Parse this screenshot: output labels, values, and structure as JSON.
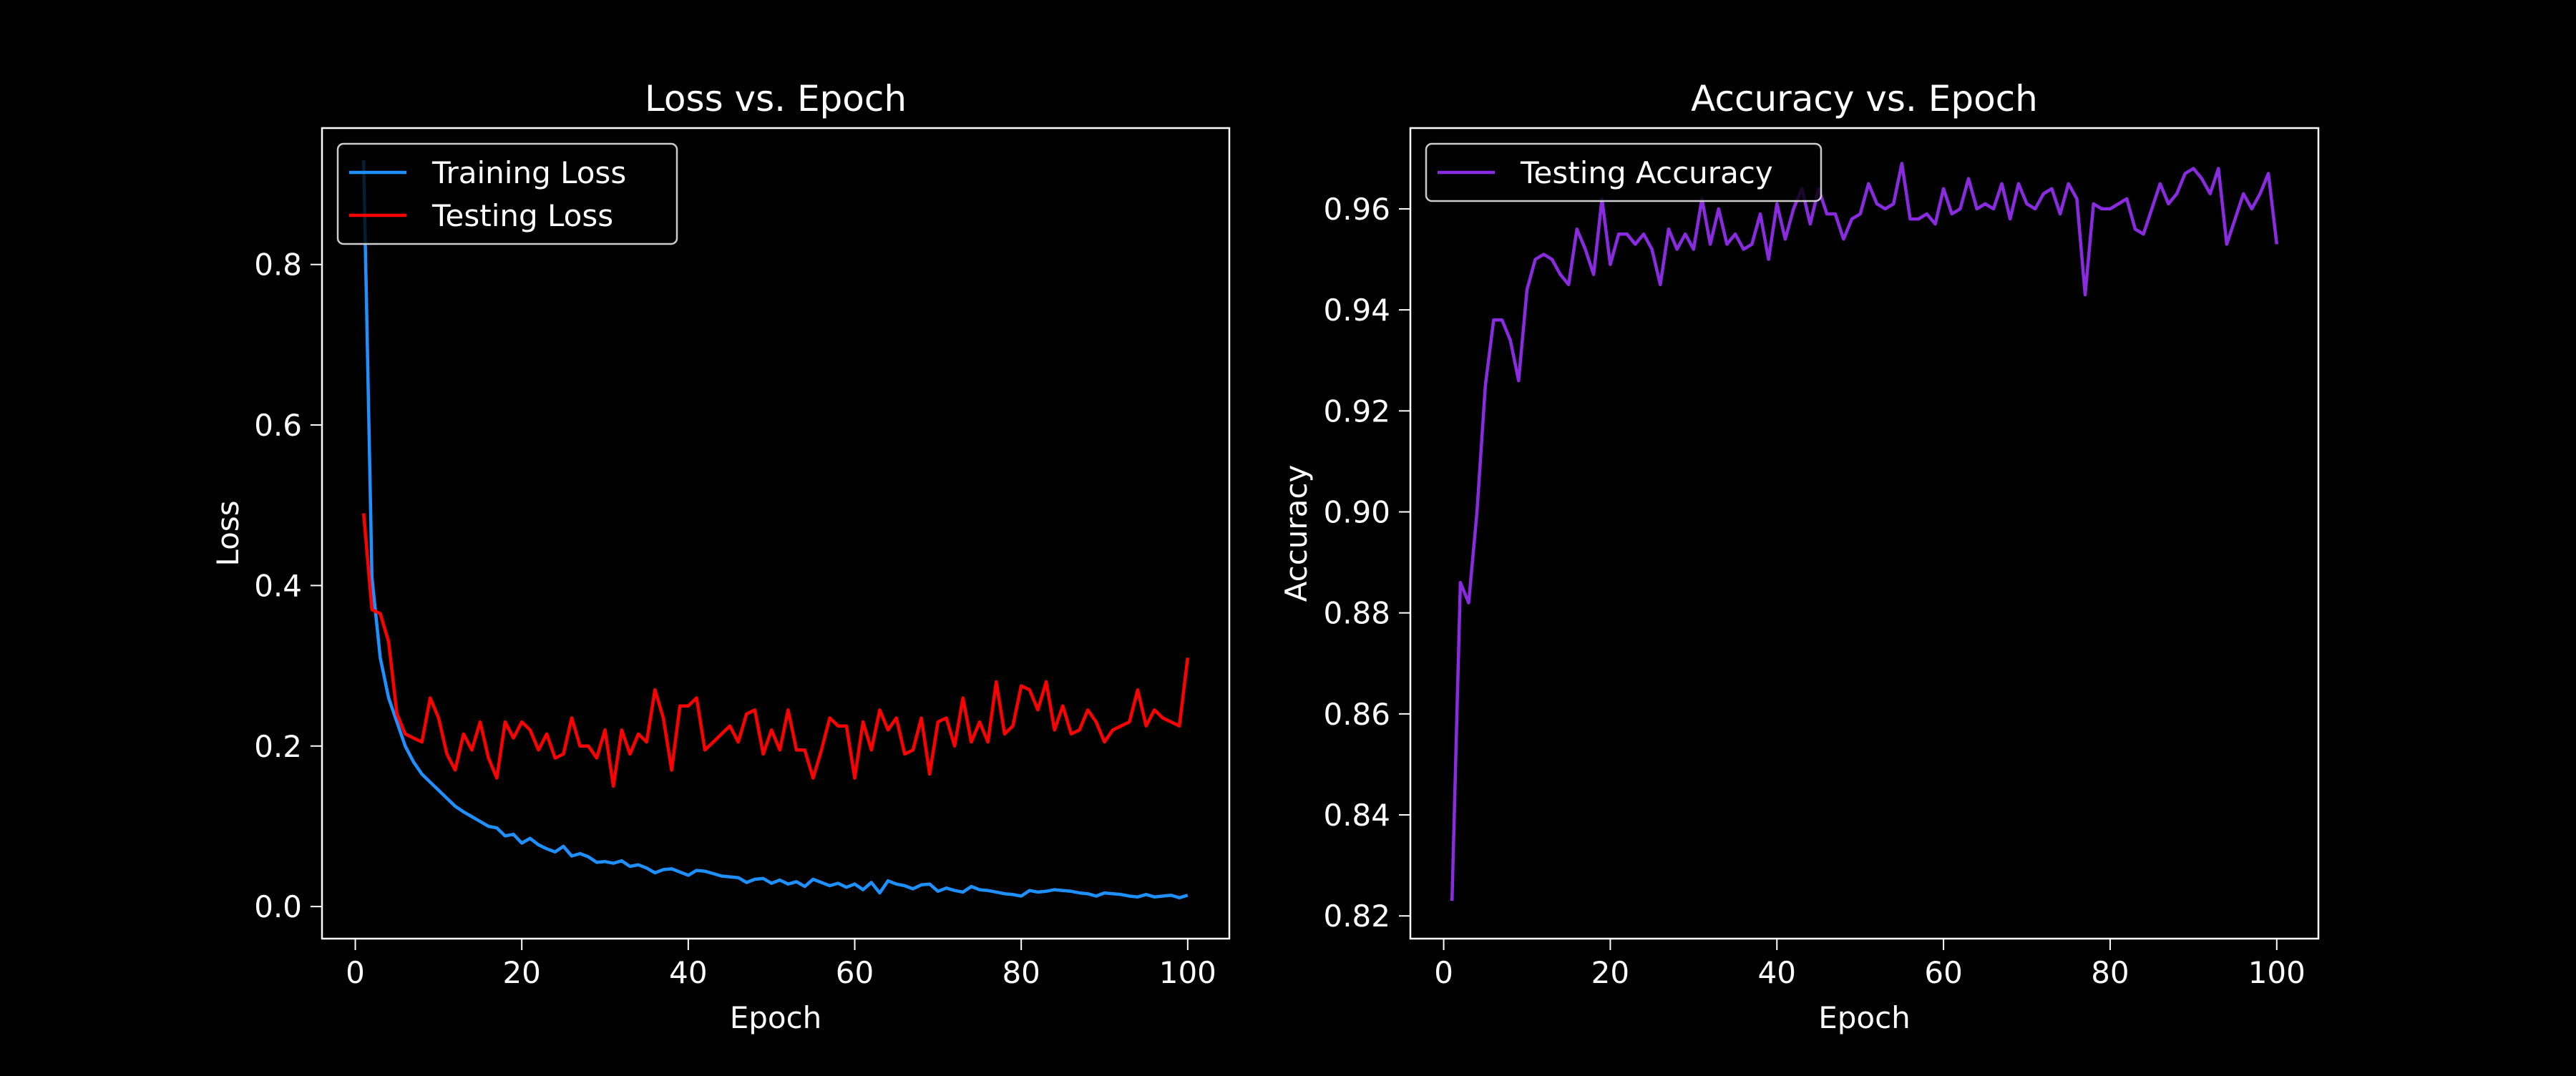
{
  "colors": {
    "background": "#000000",
    "foreground": "#ffffff",
    "training_loss": "#1e90ff",
    "testing_loss": "#ff0000",
    "testing_accuracy": "#8a2be2"
  },
  "chart_data": [
    {
      "type": "line",
      "title": "Loss vs. Epoch",
      "xlabel": "Epoch",
      "ylabel": "Loss",
      "xlim": [
        -4,
        105
      ],
      "ylim": [
        -0.04,
        0.97
      ],
      "xticks": [
        0,
        20,
        40,
        60,
        80,
        100
      ],
      "xtick_labels": [
        "0",
        "20",
        "40",
        "60",
        "80",
        "100"
      ],
      "yticks": [
        0.0,
        0.2,
        0.4,
        0.6,
        0.8
      ],
      "ytick_labels": [
        "0.0",
        "0.2",
        "0.4",
        "0.6",
        "0.8"
      ],
      "grid": false,
      "legend": "upper-left",
      "x": [
        1,
        2,
        3,
        4,
        5,
        6,
        7,
        8,
        9,
        10,
        11,
        12,
        13,
        14,
        15,
        16,
        17,
        18,
        19,
        20,
        21,
        22,
        23,
        24,
        25,
        26,
        27,
        28,
        29,
        30,
        31,
        32,
        33,
        34,
        35,
        36,
        37,
        38,
        39,
        40,
        41,
        42,
        43,
        44,
        45,
        46,
        47,
        48,
        49,
        50,
        51,
        52,
        53,
        54,
        55,
        56,
        57,
        58,
        59,
        60,
        61,
        62,
        63,
        64,
        65,
        66,
        67,
        68,
        69,
        70,
        71,
        72,
        73,
        74,
        75,
        76,
        77,
        78,
        79,
        80,
        81,
        82,
        83,
        84,
        85,
        86,
        87,
        88,
        89,
        90,
        91,
        92,
        93,
        94,
        95,
        96,
        97,
        98,
        99,
        100
      ],
      "series": [
        {
          "name": "Training Loss",
          "color": "#1e90ff",
          "values": [
            0.93,
            0.41,
            0.31,
            0.26,
            0.23,
            0.2,
            0.18,
            0.165,
            0.155,
            0.145,
            0.135,
            0.125,
            0.118,
            0.112,
            0.106,
            0.1,
            0.098,
            0.088,
            0.09,
            0.079,
            0.085,
            0.077,
            0.072,
            0.068,
            0.075,
            0.063,
            0.066,
            0.062,
            0.055,
            0.056,
            0.054,
            0.057,
            0.05,
            0.052,
            0.048,
            0.042,
            0.046,
            0.047,
            0.043,
            0.039,
            0.045,
            0.044,
            0.041,
            0.038,
            0.037,
            0.036,
            0.03,
            0.034,
            0.035,
            0.029,
            0.033,
            0.028,
            0.031,
            0.025,
            0.034,
            0.03,
            0.026,
            0.029,
            0.024,
            0.028,
            0.021,
            0.03,
            0.017,
            0.032,
            0.028,
            0.026,
            0.022,
            0.027,
            0.028,
            0.019,
            0.023,
            0.02,
            0.018,
            0.025,
            0.021,
            0.02,
            0.018,
            0.016,
            0.015,
            0.013,
            0.02,
            0.018,
            0.019,
            0.021,
            0.02,
            0.019,
            0.017,
            0.016,
            0.013,
            0.017,
            0.016,
            0.015,
            0.013,
            0.012,
            0.015,
            0.012,
            0.013,
            0.014,
            0.011,
            0.014
          ]
        },
        {
          "name": "Testing Loss",
          "color": "#ff0000",
          "values": [
            0.49,
            0.37,
            0.365,
            0.33,
            0.24,
            0.215,
            0.21,
            0.205,
            0.26,
            0.235,
            0.19,
            0.17,
            0.215,
            0.195,
            0.23,
            0.185,
            0.16,
            0.23,
            0.21,
            0.23,
            0.22,
            0.195,
            0.215,
            0.185,
            0.19,
            0.235,
            0.2,
            0.2,
            0.185,
            0.22,
            0.15,
            0.22,
            0.19,
            0.215,
            0.205,
            0.27,
            0.235,
            0.17,
            0.25,
            0.25,
            0.26,
            0.195,
            0.205,
            0.215,
            0.225,
            0.205,
            0.24,
            0.245,
            0.19,
            0.22,
            0.195,
            0.245,
            0.195,
            0.195,
            0.16,
            0.195,
            0.235,
            0.225,
            0.225,
            0.16,
            0.23,
            0.195,
            0.245,
            0.22,
            0.235,
            0.19,
            0.195,
            0.235,
            0.165,
            0.23,
            0.235,
            0.2,
            0.26,
            0.205,
            0.23,
            0.205,
            0.28,
            0.215,
            0.225,
            0.275,
            0.27,
            0.245,
            0.28,
            0.22,
            0.25,
            0.215,
            0.22,
            0.245,
            0.23,
            0.205,
            0.22,
            0.225,
            0.23,
            0.27,
            0.225,
            0.245,
            0.235,
            0.23,
            0.225,
            0.31
          ]
        }
      ]
    },
    {
      "type": "line",
      "title": "Accuracy vs. Epoch",
      "xlabel": "Epoch",
      "ylabel": "Accuracy",
      "xlim": [
        -4,
        105
      ],
      "ylim": [
        0.8155,
        0.976
      ],
      "xticks": [
        0,
        20,
        40,
        60,
        80,
        100
      ],
      "xtick_labels": [
        "0",
        "20",
        "40",
        "60",
        "80",
        "100"
      ],
      "yticks": [
        0.82,
        0.84,
        0.86,
        0.88,
        0.9,
        0.92,
        0.94,
        0.96
      ],
      "ytick_labels": [
        "0.82",
        "0.84",
        "0.86",
        "0.88",
        "0.90",
        "0.92",
        "0.94",
        "0.96"
      ],
      "grid": false,
      "legend": "upper-left",
      "x": [
        1,
        2,
        3,
        4,
        5,
        6,
        7,
        8,
        9,
        10,
        11,
        12,
        13,
        14,
        15,
        16,
        17,
        18,
        19,
        20,
        21,
        22,
        23,
        24,
        25,
        26,
        27,
        28,
        29,
        30,
        31,
        32,
        33,
        34,
        35,
        36,
        37,
        38,
        39,
        40,
        41,
        42,
        43,
        44,
        45,
        46,
        47,
        48,
        49,
        50,
        51,
        52,
        53,
        54,
        55,
        56,
        57,
        58,
        59,
        60,
        61,
        62,
        63,
        64,
        65,
        66,
        67,
        68,
        69,
        70,
        71,
        72,
        73,
        74,
        75,
        76,
        77,
        78,
        79,
        80,
        81,
        82,
        83,
        84,
        85,
        86,
        87,
        88,
        89,
        90,
        91,
        92,
        93,
        94,
        95,
        96,
        97,
        98,
        99,
        100
      ],
      "series": [
        {
          "name": "Testing Accuracy",
          "color": "#8a2be2",
          "values": [
            0.823,
            0.886,
            0.882,
            0.9,
            0.925,
            0.938,
            0.938,
            0.934,
            0.926,
            0.944,
            0.95,
            0.951,
            0.95,
            0.947,
            0.945,
            0.956,
            0.952,
            0.947,
            0.962,
            0.949,
            0.955,
            0.955,
            0.953,
            0.955,
            0.952,
            0.945,
            0.956,
            0.952,
            0.955,
            0.952,
            0.962,
            0.953,
            0.96,
            0.953,
            0.955,
            0.952,
            0.953,
            0.959,
            0.95,
            0.961,
            0.954,
            0.96,
            0.964,
            0.957,
            0.964,
            0.959,
            0.959,
            0.954,
            0.958,
            0.959,
            0.965,
            0.961,
            0.96,
            0.961,
            0.969,
            0.958,
            0.958,
            0.959,
            0.957,
            0.964,
            0.959,
            0.96,
            0.966,
            0.96,
            0.961,
            0.96,
            0.965,
            0.958,
            0.965,
            0.961,
            0.96,
            0.963,
            0.964,
            0.959,
            0.965,
            0.962,
            0.943,
            0.961,
            0.96,
            0.96,
            0.961,
            0.962,
            0.956,
            0.955,
            0.96,
            0.965,
            0.961,
            0.963,
            0.967,
            0.968,
            0.966,
            0.963,
            0.968,
            0.953,
            0.958,
            0.963,
            0.96,
            0.963,
            0.967,
            0.953
          ]
        }
      ]
    }
  ]
}
